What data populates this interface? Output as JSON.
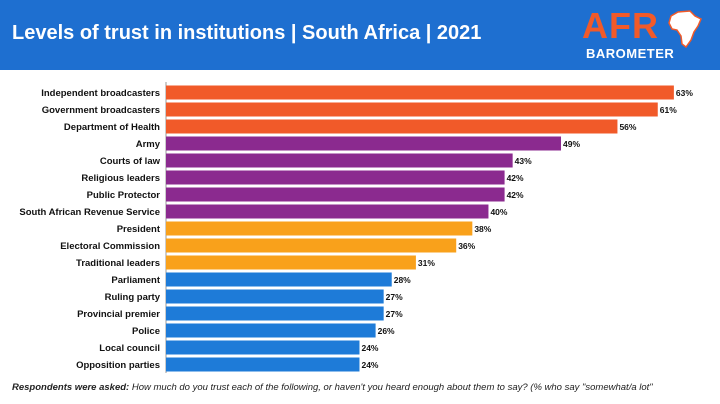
{
  "header": {
    "title": "Levels of trust in institutions | South Africa | 2021",
    "bg_color": "#1e6fd0"
  },
  "logo": {
    "word1": "AFR",
    "word2": "BAROMETER",
    "icon": "africa-continent-icon"
  },
  "chart_data": {
    "type": "bar",
    "orientation": "horizontal",
    "categories": [
      "Independent broadcasters",
      "Government broadcasters",
      "Department of Health",
      "Army",
      "Courts of law",
      "Religious leaders",
      "Public Protector",
      "South African Revenue Service",
      "President",
      "Electoral Commission",
      "Traditional leaders",
      "Parliament",
      "Ruling party",
      "Provincial premier",
      "Police",
      "Local council",
      "Opposition parties"
    ],
    "values": [
      63,
      61,
      56,
      49,
      43,
      42,
      42,
      40,
      38,
      36,
      31,
      28,
      27,
      27,
      26,
      24,
      24
    ],
    "value_labels": [
      "63%",
      "61%",
      "56%",
      "49%",
      "43%",
      "42%",
      "42%",
      "40%",
      "38%",
      "36%",
      "31%",
      "28%",
      "27%",
      "27%",
      "26%",
      "24%",
      "24%"
    ],
    "colors": [
      "#f15a29",
      "#f15a29",
      "#f15a29",
      "#8b2a8f",
      "#8b2a8f",
      "#8b2a8f",
      "#8b2a8f",
      "#8b2a8f",
      "#f9a11b",
      "#f9a11b",
      "#f9a11b",
      "#1e7bd8",
      "#1e7bd8",
      "#1e7bd8",
      "#1e7bd8",
      "#1e7bd8",
      "#1e7bd8"
    ],
    "xlim": [
      0,
      65
    ],
    "grid": false,
    "legend": "none"
  },
  "footnote": {
    "lead": "Respondents were asked:",
    "question": " How much do you trust each of the following, or haven't you heard enough about them to say? (% who say \"somewhat/a lot\""
  }
}
